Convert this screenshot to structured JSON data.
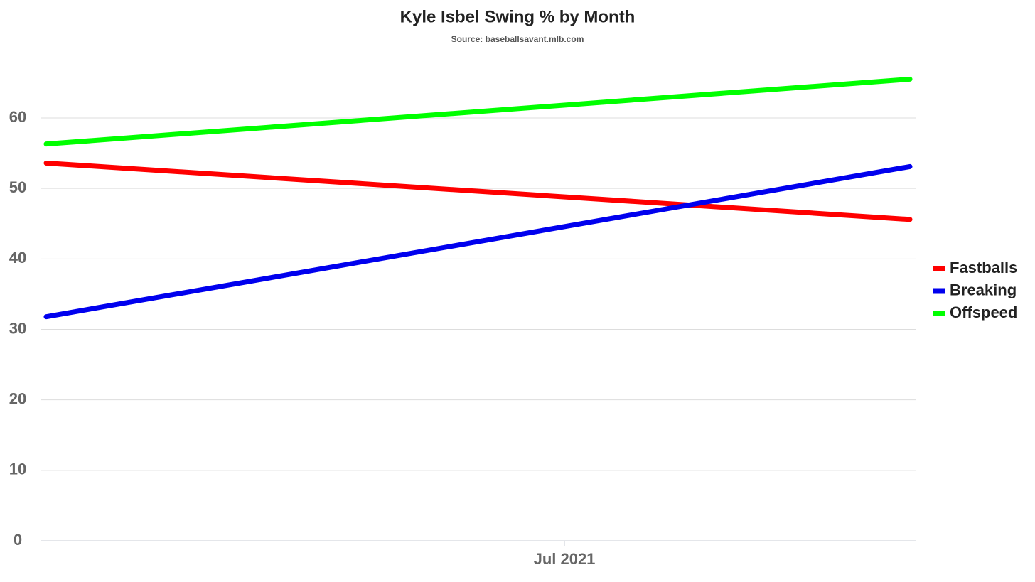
{
  "chart_data": {
    "type": "line",
    "title": "Kyle Isbel Swing % by Month",
    "subtitle": "Source: baseballsavant.mlb.com",
    "x": [
      "2021-04",
      "2021-09"
    ],
    "xlim": [
      "2021-04",
      "2021-09"
    ],
    "xticks": [
      {
        "value": "2021-07",
        "label": "Jul 2021"
      }
    ],
    "series": [
      {
        "name": "Fastballs",
        "color": "#ff0000",
        "values": [
          53.6,
          45.6
        ]
      },
      {
        "name": "Breaking",
        "color": "#0000ee",
        "values": [
          31.8,
          53.1
        ]
      },
      {
        "name": "Offspeed",
        "color": "#00ff00",
        "values": [
          56.3,
          65.5
        ]
      }
    ],
    "ylim": [
      0,
      70
    ],
    "yticks": [
      0,
      10,
      20,
      30,
      40,
      50,
      60
    ],
    "grid": true,
    "legend": "right"
  }
}
